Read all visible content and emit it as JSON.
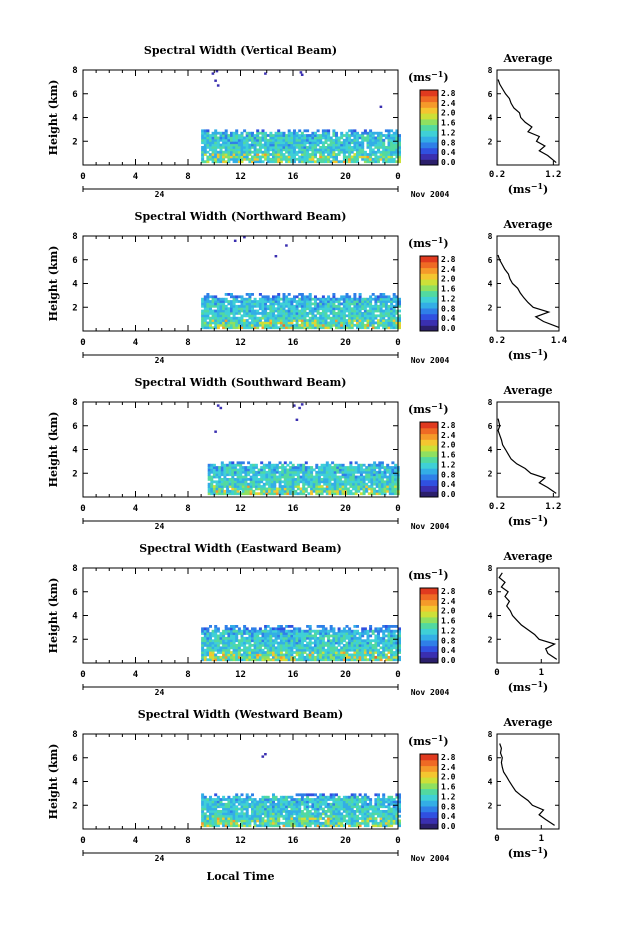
{
  "figure": {
    "xlabel": "Local Time",
    "date_label": "Nov 2004",
    "day_label": "24",
    "colorbar_unit": "(ms",
    "colorbar_unit_exp": "−1",
    "avg_unit": "(ms",
    "avg_unit_exp": "−1",
    "avg_unit_close": ")",
    "colorbar_unit_close": ")"
  },
  "palette": [
    "#2b1f6b",
    "#3a2fb0",
    "#3050e0",
    "#2f7fe8",
    "#33aee6",
    "#3fd0d6",
    "#52d9a0",
    "#8fe060",
    "#cde038",
    "#f4c630",
    "#f59a2a",
    "#ef6a24",
    "#e03a1f"
  ],
  "chart_data": [
    {
      "type": "heatmap",
      "title": "Spectral Width (Vertical Beam)",
      "xlabel": "Local Time",
      "ylabel": "Height (km)",
      "xlim": [
        0,
        24
      ],
      "ylim": [
        0,
        8
      ],
      "xticks": [
        "0",
        "4",
        "8",
        "12",
        "16",
        "20",
        "0"
      ],
      "yticks": [
        "2",
        "4",
        "6",
        "8"
      ],
      "colorbar": {
        "label": "(ms−1)",
        "ticks": [
          "0.0",
          "0.4",
          "0.8",
          "1.2",
          "1.6",
          "2.0",
          "2.4",
          "2.8"
        ],
        "range": [
          0,
          2.8
        ]
      },
      "echo_region": {
        "t_start": 9.0,
        "t_end": 24.0,
        "h_top": 3.0
      },
      "sparse_echoes": [
        [
          9.8,
          7.6
        ],
        [
          10.0,
          7.0
        ],
        [
          10.2,
          6.6
        ],
        [
          10.1,
          7.8
        ],
        [
          13.8,
          7.6
        ],
        [
          16.5,
          7.7
        ],
        [
          16.6,
          7.5
        ],
        [
          22.6,
          4.8
        ]
      ],
      "average": {
        "title": "Average",
        "xlim": [
          0.2,
          1.3
        ],
        "xticks": [
          "0.2",
          "1.2"
        ],
        "ylim": [
          0,
          8
        ],
        "yticks": [
          "2",
          "4",
          "6",
          "8"
        ],
        "unit": "(ms−1)",
        "profile": [
          [
            1.25,
            0.2
          ],
          [
            1.1,
            0.8
          ],
          [
            0.95,
            1.2
          ],
          [
            1.05,
            1.6
          ],
          [
            0.9,
            2.0
          ],
          [
            0.95,
            2.4
          ],
          [
            0.75,
            2.8
          ],
          [
            0.82,
            3.2
          ],
          [
            0.7,
            3.6
          ],
          [
            0.62,
            4.0
          ],
          [
            0.6,
            4.4
          ],
          [
            0.5,
            4.8
          ],
          [
            0.45,
            5.2
          ],
          [
            0.42,
            5.6
          ],
          [
            0.35,
            6.0
          ],
          [
            0.3,
            6.4
          ],
          [
            0.25,
            6.8
          ],
          [
            0.22,
            7.2
          ]
        ]
      }
    },
    {
      "type": "heatmap",
      "title": "Spectral Width (Northward Beam)",
      "xlabel": "Local Time",
      "ylabel": "Height (km)",
      "xlim": [
        0,
        24
      ],
      "ylim": [
        0,
        8
      ],
      "xticks": [
        "0",
        "4",
        "8",
        "12",
        "16",
        "20",
        "0"
      ],
      "yticks": [
        "2",
        "4",
        "6",
        "8"
      ],
      "colorbar": {
        "label": "(ms−1)",
        "ticks": [
          "0.0",
          "0.4",
          "0.8",
          "1.2",
          "1.6",
          "2.0",
          "2.4",
          "2.8"
        ],
        "range": [
          0,
          2.8
        ]
      },
      "echo_region": {
        "t_start": 9.0,
        "t_end": 24.0,
        "h_top": 3.2
      },
      "sparse_echoes": [
        [
          11.5,
          7.5
        ],
        [
          12.2,
          7.8
        ],
        [
          15.4,
          7.1
        ],
        [
          14.6,
          6.2
        ]
      ],
      "average": {
        "title": "Average",
        "xlim": [
          0.2,
          1.4
        ],
        "xticks": [
          "0.2",
          "1.4"
        ],
        "ylim": [
          0,
          8
        ],
        "yticks": [
          "2",
          "4",
          "6",
          "8"
        ],
        "unit": "(ms−1)",
        "profile": [
          [
            1.4,
            0.3
          ],
          [
            1.1,
            0.8
          ],
          [
            0.95,
            1.2
          ],
          [
            1.2,
            1.6
          ],
          [
            0.9,
            2.0
          ],
          [
            0.8,
            2.4
          ],
          [
            0.72,
            2.8
          ],
          [
            0.65,
            3.2
          ],
          [
            0.6,
            3.6
          ],
          [
            0.5,
            4.0
          ],
          [
            0.45,
            4.4
          ],
          [
            0.42,
            4.8
          ],
          [
            0.35,
            5.2
          ],
          [
            0.3,
            5.6
          ],
          [
            0.25,
            6.0
          ],
          [
            0.22,
            6.4
          ]
        ]
      }
    },
    {
      "type": "heatmap",
      "title": "Spectral Width (Southward Beam)",
      "xlabel": "Local Time",
      "ylabel": "Height (km)",
      "xlim": [
        0,
        24
      ],
      "ylim": [
        0,
        8
      ],
      "xticks": [
        "0",
        "4",
        "8",
        "12",
        "16",
        "20",
        "0"
      ],
      "yticks": [
        "2",
        "4",
        "6",
        "8"
      ],
      "colorbar": {
        "label": "(ms−1)",
        "ticks": [
          "0.0",
          "0.4",
          "0.8",
          "1.2",
          "1.6",
          "2.0",
          "2.4",
          "2.8"
        ],
        "range": [
          0,
          2.8
        ]
      },
      "echo_region": {
        "t_start": 9.5,
        "t_end": 24.0,
        "h_top": 3.0
      },
      "sparse_echoes": [
        [
          10.2,
          7.6
        ],
        [
          10.4,
          7.4
        ],
        [
          10.0,
          5.4
        ],
        [
          16.0,
          7.6
        ],
        [
          16.4,
          7.4
        ],
        [
          16.6,
          7.7
        ],
        [
          16.2,
          6.4
        ]
      ],
      "average": {
        "title": "Average",
        "xlim": [
          0.2,
          1.3
        ],
        "xticks": [
          "0.2",
          "1.2"
        ],
        "ylim": [
          0,
          8
        ],
        "yticks": [
          "2",
          "4",
          "6",
          "8"
        ],
        "unit": "(ms−1)",
        "profile": [
          [
            1.25,
            0.3
          ],
          [
            1.1,
            0.8
          ],
          [
            0.95,
            1.2
          ],
          [
            1.05,
            1.6
          ],
          [
            0.8,
            2.0
          ],
          [
            0.7,
            2.4
          ],
          [
            0.55,
            2.8
          ],
          [
            0.45,
            3.2
          ],
          [
            0.4,
            3.6
          ],
          [
            0.35,
            4.0
          ],
          [
            0.3,
            4.4
          ],
          [
            0.28,
            4.8
          ],
          [
            0.25,
            5.2
          ],
          [
            0.22,
            5.6
          ],
          [
            0.25,
            6.0
          ],
          [
            0.22,
            6.6
          ]
        ]
      }
    },
    {
      "type": "heatmap",
      "title": "Spectral Width (Eastward Beam)",
      "xlabel": "Local Time",
      "ylabel": "Height (km)",
      "xlim": [
        0,
        24
      ],
      "ylim": [
        0,
        8
      ],
      "xticks": [
        "0",
        "4",
        "8",
        "12",
        "16",
        "20",
        "0"
      ],
      "yticks": [
        "2",
        "4",
        "6",
        "8"
      ],
      "colorbar": {
        "label": "(ms−1)",
        "ticks": [
          "0.0",
          "0.4",
          "0.8",
          "1.2",
          "1.6",
          "2.0",
          "2.4",
          "2.8"
        ],
        "range": [
          0,
          2.8
        ]
      },
      "echo_region": {
        "t_start": 9.0,
        "t_end": 24.0,
        "h_top": 3.2
      },
      "sparse_echoes": [],
      "average": {
        "title": "Average",
        "xlim": [
          0,
          1.4
        ],
        "xticks": [
          "0",
          "1"
        ],
        "ylim": [
          0,
          8
        ],
        "yticks": [
          "2",
          "4",
          "6",
          "8"
        ],
        "unit": "(ms−1)",
        "profile": [
          [
            1.35,
            0.3
          ],
          [
            1.15,
            0.8
          ],
          [
            1.1,
            1.2
          ],
          [
            1.3,
            1.6
          ],
          [
            0.95,
            2.0
          ],
          [
            0.85,
            2.4
          ],
          [
            0.7,
            2.8
          ],
          [
            0.55,
            3.2
          ],
          [
            0.45,
            3.6
          ],
          [
            0.35,
            4.0
          ],
          [
            0.3,
            4.4
          ],
          [
            0.22,
            4.8
          ],
          [
            0.28,
            5.2
          ],
          [
            0.18,
            5.6
          ],
          [
            0.25,
            6.0
          ],
          [
            0.1,
            6.4
          ],
          [
            0.18,
            6.8
          ],
          [
            0.05,
            7.2
          ],
          [
            0.12,
            7.6
          ]
        ]
      }
    },
    {
      "type": "heatmap",
      "title": "Spectral Width (Westward Beam)",
      "xlabel": "Local Time",
      "ylabel": "Height (km)",
      "xlim": [
        0,
        24
      ],
      "ylim": [
        0,
        8
      ],
      "xticks": [
        "0",
        "4",
        "8",
        "12",
        "16",
        "20",
        "0"
      ],
      "yticks": [
        "2",
        "4",
        "6",
        "8"
      ],
      "colorbar": {
        "label": "(ms−1)",
        "ticks": [
          "0.0",
          "0.4",
          "0.8",
          "1.2",
          "1.6",
          "2.0",
          "2.4",
          "2.8"
        ],
        "range": [
          0,
          2.8
        ]
      },
      "echo_region": {
        "t_start": 9.0,
        "t_end": 24.0,
        "h_top": 3.0
      },
      "sparse_echoes": [
        [
          13.6,
          6.0
        ],
        [
          13.8,
          6.2
        ]
      ],
      "average": {
        "title": "Average",
        "xlim": [
          0,
          1.4
        ],
        "xticks": [
          "0",
          "1"
        ],
        "ylim": [
          0,
          8
        ],
        "yticks": [
          "2",
          "4",
          "6",
          "8"
        ],
        "unit": "(ms−1)",
        "profile": [
          [
            1.3,
            0.3
          ],
          [
            1.1,
            0.8
          ],
          [
            0.95,
            1.2
          ],
          [
            1.05,
            1.6
          ],
          [
            0.8,
            2.0
          ],
          [
            0.7,
            2.4
          ],
          [
            0.55,
            2.8
          ],
          [
            0.42,
            3.2
          ],
          [
            0.35,
            3.6
          ],
          [
            0.28,
            4.0
          ],
          [
            0.22,
            4.4
          ],
          [
            0.15,
            4.8
          ],
          [
            0.12,
            5.2
          ],
          [
            0.1,
            5.6
          ],
          [
            0.12,
            6.0
          ],
          [
            0.08,
            6.4
          ],
          [
            0.1,
            6.8
          ],
          [
            0.06,
            7.2
          ]
        ]
      }
    }
  ]
}
